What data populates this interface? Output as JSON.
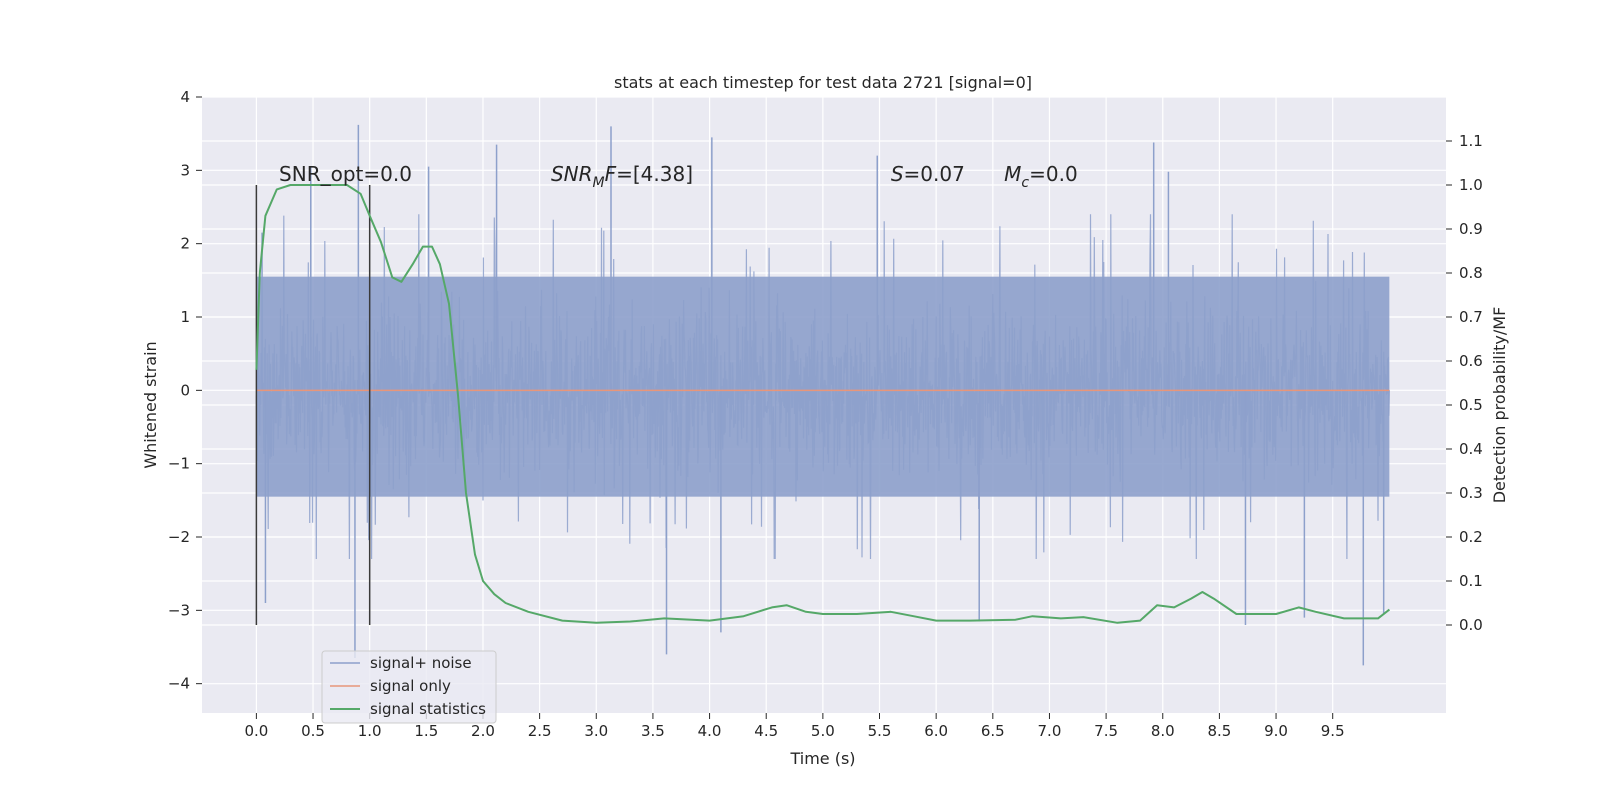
{
  "chart_data": {
    "type": "line",
    "title": "stats at each timestep for test data 2721 [signal=0]",
    "xlabel": "Time (s)",
    "ylabel_left": "Whitened strain",
    "ylabel_right": "Detection probability/MF",
    "xlim": [
      -0.48,
      10.5
    ],
    "ylim_left": [
      -4.4,
      4.0
    ],
    "ylim_right": [
      -0.2,
      1.2
    ],
    "x_ticks": [
      "0.0",
      "0.5",
      "1.0",
      "1.5",
      "2.0",
      "2.5",
      "3.0",
      "3.5",
      "4.0",
      "4.5",
      "5.0",
      "5.5",
      "6.0",
      "6.5",
      "7.0",
      "7.5",
      "8.0",
      "8.5",
      "9.0",
      "9.5"
    ],
    "y_ticks_left": [
      "−4",
      "−3",
      "−2",
      "−1",
      "0",
      "1",
      "2",
      "3",
      "4"
    ],
    "y_ticks_right": [
      "0.0",
      "0.1",
      "0.2",
      "0.3",
      "0.4",
      "0.5",
      "0.6",
      "0.7",
      "0.8",
      "0.9",
      "1.0",
      "1.1"
    ],
    "grid": true,
    "legend_position": "lower-left",
    "colors": {
      "background": "#eaeaf2",
      "grid": "#ffffff",
      "noise": "#8da0cb",
      "signal": "#e8967a",
      "statistics": "#55a868",
      "window": "#3a3a3a"
    },
    "series": [
      {
        "name": "signal+ noise",
        "axis": "left",
        "x_range": [
          0.0,
          10.0
        ],
        "band_core": [
          -1.45,
          1.55
        ],
        "band_typical": [
          -2.3,
          2.4
        ],
        "spike_max": [
          [
            0.05,
            2.15
          ],
          [
            0.48,
            3.05
          ],
          [
            0.9,
            3.62
          ],
          [
            1.52,
            3.05
          ],
          [
            2.12,
            3.35
          ],
          [
            3.13,
            3.6
          ],
          [
            4.02,
            3.45
          ],
          [
            5.48,
            3.2
          ],
          [
            7.92,
            3.38
          ],
          [
            8.05,
            2.98
          ]
        ],
        "spike_min": [
          [
            0.08,
            -2.9
          ],
          [
            0.87,
            -3.65
          ],
          [
            3.62,
            -3.6
          ],
          [
            4.1,
            -3.3
          ],
          [
            6.38,
            -3.15
          ],
          [
            8.73,
            -3.2
          ],
          [
            9.25,
            -3.1
          ],
          [
            9.77,
            -3.75
          ],
          [
            9.95,
            -3.05
          ]
        ]
      },
      {
        "name": "signal only",
        "axis": "left",
        "x": [
          0.0,
          10.0
        ],
        "y": [
          0.0,
          0.0
        ]
      },
      {
        "name": "signal statistics",
        "axis": "right",
        "points": [
          [
            0.0,
            0.58
          ],
          [
            0.03,
            0.8
          ],
          [
            0.08,
            0.93
          ],
          [
            0.18,
            0.99
          ],
          [
            0.3,
            1.0
          ],
          [
            0.5,
            1.0
          ],
          [
            0.8,
            1.0
          ],
          [
            0.92,
            0.98
          ],
          [
            1.0,
            0.93
          ],
          [
            1.1,
            0.87
          ],
          [
            1.2,
            0.79
          ],
          [
            1.28,
            0.78
          ],
          [
            1.38,
            0.82
          ],
          [
            1.47,
            0.86
          ],
          [
            1.55,
            0.86
          ],
          [
            1.62,
            0.82
          ],
          [
            1.7,
            0.73
          ],
          [
            1.78,
            0.52
          ],
          [
            1.85,
            0.3
          ],
          [
            1.93,
            0.16
          ],
          [
            2.0,
            0.1
          ],
          [
            2.1,
            0.07
          ],
          [
            2.2,
            0.05
          ],
          [
            2.4,
            0.03
          ],
          [
            2.7,
            0.01
          ],
          [
            3.0,
            0.005
          ],
          [
            3.3,
            0.008
          ],
          [
            3.6,
            0.015
          ],
          [
            4.0,
            0.01
          ],
          [
            4.3,
            0.02
          ],
          [
            4.55,
            0.04
          ],
          [
            4.68,
            0.045
          ],
          [
            4.85,
            0.03
          ],
          [
            5.0,
            0.025
          ],
          [
            5.3,
            0.025
          ],
          [
            5.6,
            0.03
          ],
          [
            5.8,
            0.02
          ],
          [
            6.0,
            0.01
          ],
          [
            6.3,
            0.01
          ],
          [
            6.7,
            0.012
          ],
          [
            6.85,
            0.02
          ],
          [
            7.1,
            0.015
          ],
          [
            7.3,
            0.018
          ],
          [
            7.6,
            0.005
          ],
          [
            7.8,
            0.01
          ],
          [
            7.95,
            0.045
          ],
          [
            8.1,
            0.04
          ],
          [
            8.25,
            0.06
          ],
          [
            8.35,
            0.075
          ],
          [
            8.45,
            0.06
          ],
          [
            8.65,
            0.025
          ],
          [
            9.0,
            0.025
          ],
          [
            9.2,
            0.04
          ],
          [
            9.35,
            0.03
          ],
          [
            9.6,
            0.015
          ],
          [
            9.9,
            0.015
          ],
          [
            10.0,
            0.035
          ]
        ]
      }
    ],
    "window_lines_x": [
      0.0,
      1.0
    ],
    "window_lines_y": [
      -3.2,
      2.8
    ],
    "annotations": [
      {
        "key": "snr_opt",
        "text": "SNR_opt=0.0",
        "x": 0.2,
        "y": 2.95
      },
      {
        "key": "snr_mf",
        "text": "=[4.38]",
        "base": "SNR",
        "sub": "M",
        "tail": "F",
        "x": 2.6,
        "y": 2.95
      },
      {
        "key": "s",
        "text": "=0.07",
        "base": "S",
        "x": 5.6,
        "y": 2.95
      },
      {
        "key": "mc",
        "text": "=0.0",
        "base": "M",
        "sub": "c",
        "x": 6.6,
        "y": 2.95
      }
    ]
  }
}
